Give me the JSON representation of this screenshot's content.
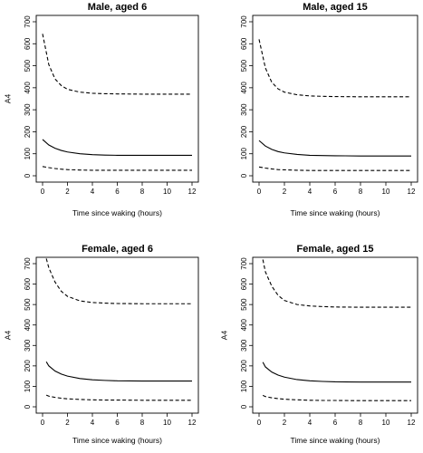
{
  "chart_data": [
    {
      "type": "line",
      "title": "Male, aged 6",
      "xlabel": "Time since waking (hours)",
      "ylabel": "A4",
      "xlim": [
        0,
        12
      ],
      "ylim": [
        0,
        700
      ],
      "xticks": [
        0,
        2,
        4,
        6,
        8,
        10,
        12
      ],
      "yticks": [
        0,
        100,
        200,
        300,
        400,
        500,
        600,
        700
      ],
      "grid": false,
      "x": [
        0,
        0.5,
        1,
        1.5,
        2,
        3,
        4,
        5,
        6,
        8,
        10,
        12
      ],
      "series": [
        {
          "style": "dashed",
          "values": [
            645,
            505,
            440,
            410,
            393,
            380,
            375,
            373,
            372,
            371,
            371,
            371
          ]
        },
        {
          "style": "solid",
          "values": [
            165,
            140,
            125,
            115,
            108,
            100,
            96,
            94,
            93,
            93,
            93,
            93
          ]
        },
        {
          "style": "dashed",
          "values": [
            42,
            37,
            33,
            30,
            28,
            26,
            25,
            25,
            25,
            25,
            25,
            25
          ]
        }
      ]
    },
    {
      "type": "line",
      "title": "Male, aged 15",
      "xlabel": "Time since waking (hours)",
      "ylabel": "",
      "xlim": [
        0,
        12
      ],
      "ylim": [
        0,
        700
      ],
      "xticks": [
        0,
        2,
        4,
        6,
        8,
        10,
        12
      ],
      "yticks": [
        0,
        100,
        200,
        300,
        400,
        500,
        600,
        700
      ],
      "grid": false,
      "x": [
        0,
        0.5,
        1,
        1.5,
        2,
        3,
        4,
        5,
        6,
        8,
        10,
        12
      ],
      "series": [
        {
          "style": "dashed",
          "values": [
            620,
            490,
            425,
            395,
            380,
            368,
            363,
            361,
            360,
            359,
            359,
            359
          ]
        },
        {
          "style": "solid",
          "values": [
            160,
            135,
            120,
            110,
            104,
            97,
            93,
            92,
            91,
            90,
            90,
            90
          ]
        },
        {
          "style": "dashed",
          "values": [
            40,
            35,
            31,
            28,
            27,
            25,
            24,
            24,
            24,
            24,
            24,
            24
          ]
        }
      ]
    },
    {
      "type": "line",
      "title": "Female, aged 6",
      "xlabel": "Time since waking (hours)",
      "ylabel": "A4",
      "xlim": [
        0,
        12
      ],
      "ylim": [
        0,
        700
      ],
      "xticks": [
        0,
        2,
        4,
        6,
        8,
        10,
        12
      ],
      "yticks": [
        0,
        100,
        200,
        300,
        400,
        500,
        600,
        700
      ],
      "grid": false,
      "x": [
        0.3,
        0.5,
        1,
        1.5,
        2,
        3,
        4,
        5,
        6,
        8,
        10,
        12
      ],
      "series": [
        {
          "style": "dashed",
          "values": [
            725,
            680,
            610,
            565,
            540,
            518,
            510,
            507,
            505,
            504,
            504,
            504
          ]
        },
        {
          "style": "solid",
          "values": [
            220,
            200,
            175,
            160,
            150,
            138,
            132,
            129,
            127,
            126,
            126,
            126
          ]
        },
        {
          "style": "dashed",
          "values": [
            57,
            52,
            46,
            42,
            39,
            36,
            34,
            33,
            33,
            32,
            32,
            32
          ]
        }
      ]
    },
    {
      "type": "line",
      "title": "Female, aged 15",
      "xlabel": "Time since waking (hours)",
      "ylabel": "A4",
      "xlim": [
        0,
        12
      ],
      "ylim": [
        0,
        700
      ],
      "xticks": [
        0,
        2,
        4,
        6,
        8,
        10,
        12
      ],
      "yticks": [
        0,
        100,
        200,
        300,
        400,
        500,
        600,
        700
      ],
      "grid": false,
      "x": [
        0.3,
        0.5,
        1,
        1.5,
        2,
        3,
        4,
        5,
        6,
        8,
        10,
        12
      ],
      "series": [
        {
          "style": "dashed",
          "values": [
            720,
            660,
            590,
            545,
            520,
            500,
            493,
            490,
            488,
            487,
            487,
            487
          ]
        },
        {
          "style": "solid",
          "values": [
            218,
            195,
            170,
            155,
            145,
            133,
            127,
            124,
            122,
            121,
            121,
            121
          ]
        },
        {
          "style": "dashed",
          "values": [
            56,
            50,
            44,
            40,
            37,
            34,
            32,
            31,
            31,
            30,
            30,
            30
          ]
        }
      ]
    }
  ]
}
